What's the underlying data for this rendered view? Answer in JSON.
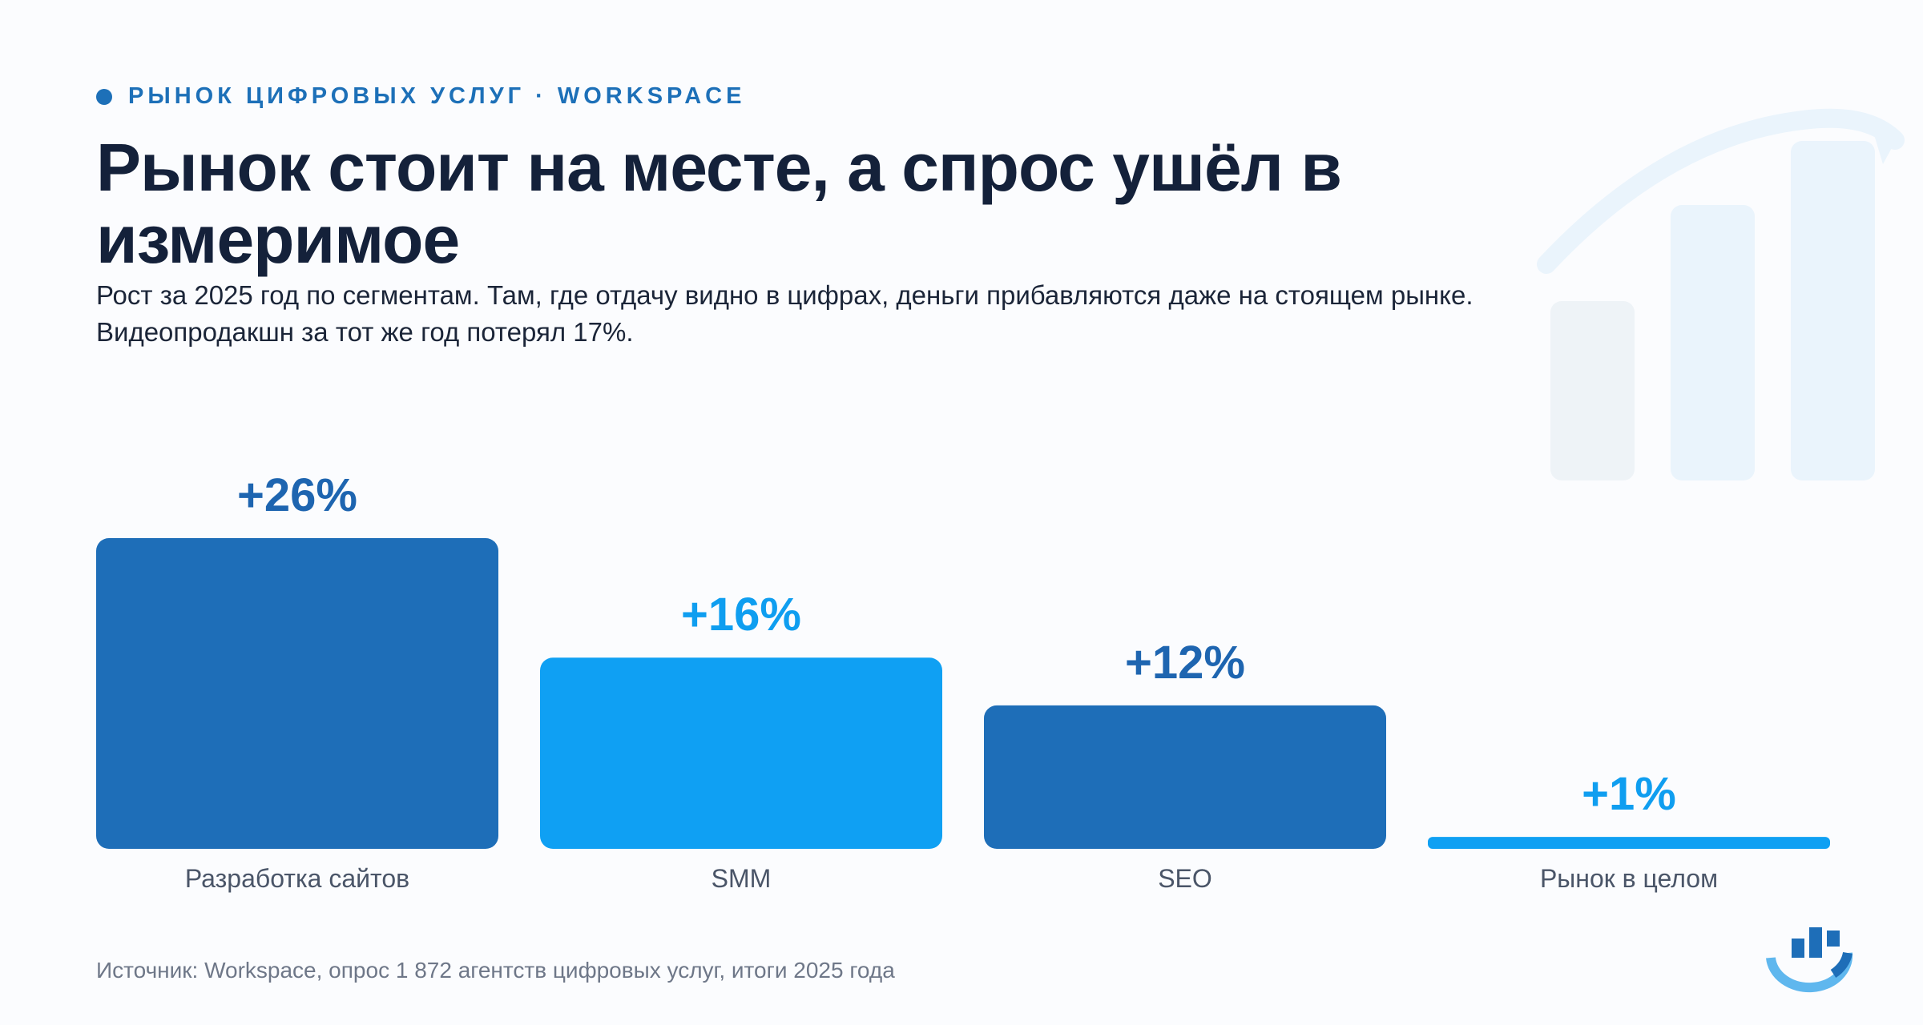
{
  "header": {
    "eyebrow": "РЫНОК ЦИФРОВЫХ УСЛУГ · WORKSPACE",
    "title": "Рынок стоит на месте, а спрос ушёл в измеримое",
    "subtitle": "Рост за 2025 год по сегментам. Там, где отдачу видно в цифрах, деньги прибавляются даже на стоящем рынке. Видеопродакшн за тот же год потерял 17%."
  },
  "chart_data": {
    "type": "bar",
    "categories": [
      "Разработка сайтов",
      "SMM",
      "SEO",
      "Рынок в целом"
    ],
    "values": [
      26,
      16,
      12,
      1
    ],
    "value_labels": [
      "+26%",
      "+16%",
      "+12%",
      "+1%"
    ],
    "colors": [
      "#1e6eb8",
      "#0fa0f3",
      "#1e6eb8",
      "#0fa0f3"
    ],
    "label_colors": [
      "#1e65b0",
      "#0f9ef0",
      "#1e65b0",
      "#0f9ef0"
    ],
    "ylim": [
      0,
      26
    ],
    "grid": false,
    "legend": "none"
  },
  "footer": {
    "source": "Источник: Workspace, опрос 1 872 агентств цифровых услуг, итоги 2025 года"
  },
  "decor": {
    "deco_icon": "bar-chart-growth-icon",
    "logo_icon": "workspace-logo-icon"
  }
}
